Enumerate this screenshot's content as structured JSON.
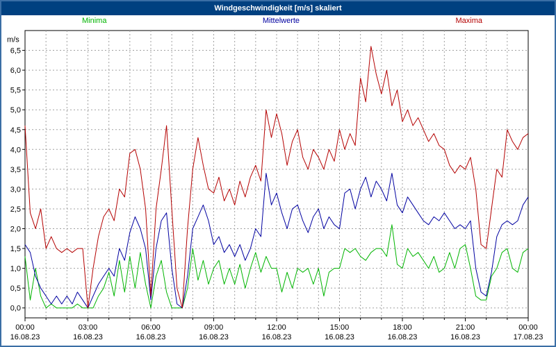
{
  "window": {
    "title": "Windgeschwindigkeit [m/s] skaliert"
  },
  "colors": {
    "titlebar_bg": "#004080",
    "frame_border": "#3a6ea5",
    "grid": "#a0a0a0",
    "axis": "#000000",
    "minima": "#00b400",
    "mittelwerte": "#0000a0",
    "maxima": "#b40000"
  },
  "legend": [
    {
      "label": "Minima",
      "color": "#00b400"
    },
    {
      "label": "Mittelwerte",
      "color": "#0000a0"
    },
    {
      "label": "Maxima",
      "color": "#b40000"
    }
  ],
  "chart_data": {
    "type": "line",
    "title": "Windgeschwindigkeit [m/s] skaliert",
    "ylabel": "m/s",
    "ylim": [
      -0.25,
      7.0
    ],
    "ytick_step": 0.5,
    "yticks": [
      0,
      0.5,
      1,
      1.5,
      2,
      2.5,
      3,
      3.5,
      4,
      4.5,
      5,
      5.5,
      6,
      6.5
    ],
    "ytick_labels": [
      "0,0",
      "0,5",
      "1,0",
      "1,5",
      "2,0",
      "2,5",
      "3,0",
      "3,5",
      "4,0",
      "4,5",
      "5,0",
      "5,5",
      "6,0",
      "6,5"
    ],
    "x_range_hours": [
      0,
      24
    ],
    "x_step_hours": 0.25,
    "grid": true,
    "legend_position": "top",
    "x_ticks": [
      {
        "hour": 0,
        "time": "00:00",
        "date": "16.08.23"
      },
      {
        "hour": 3,
        "time": "03:00",
        "date": "16.08.23"
      },
      {
        "hour": 6,
        "time": "06:00",
        "date": "16.08.23"
      },
      {
        "hour": 9,
        "time": "09:00",
        "date": "16.08.23"
      },
      {
        "hour": 12,
        "time": "12:00",
        "date": "16.08.23"
      },
      {
        "hour": 15,
        "time": "15:00",
        "date": "16.08.23"
      },
      {
        "hour": 18,
        "time": "18:00",
        "date": "16.08.23"
      },
      {
        "hour": 21,
        "time": "21:00",
        "date": "16.08.23"
      },
      {
        "hour": 24,
        "time": "00:00",
        "date": "17.08.23"
      }
    ],
    "series": [
      {
        "name": "Minima",
        "color": "#00b400",
        "values": [
          1.3,
          0.2,
          1.0,
          0.3,
          0.0,
          0.1,
          0.0,
          0.0,
          0.0,
          0.0,
          0.1,
          0.0,
          0.0,
          0.0,
          0.3,
          0.5,
          0.9,
          0.3,
          1.2,
          0.4,
          1.3,
          0.5,
          1.4,
          0.6,
          0.0,
          0.8,
          1.2,
          0.4,
          0.0,
          0.0,
          0.0,
          0.5,
          1.5,
          0.7,
          1.2,
          0.6,
          1.0,
          1.2,
          0.6,
          1.0,
          0.6,
          1.1,
          0.5,
          1.0,
          1.4,
          0.9,
          1.3,
          1.0,
          1.0,
          0.4,
          0.9,
          0.5,
          1.0,
          0.9,
          1.0,
          0.6,
          1.0,
          0.3,
          0.9,
          1.0,
          1.0,
          1.5,
          1.4,
          1.5,
          1.3,
          1.2,
          1.4,
          1.5,
          1.5,
          1.3,
          2.1,
          1.1,
          1.0,
          1.5,
          1.3,
          1.4,
          1.2,
          1.0,
          1.3,
          0.9,
          1.0,
          1.4,
          1.0,
          1.5,
          1.6,
          1.0,
          0.3,
          0.2,
          0.2,
          0.8,
          1.0,
          1.4,
          1.5,
          1.0,
          0.9,
          1.4,
          1.5
        ]
      },
      {
        "name": "Mittelwerte",
        "color": "#0000a0",
        "values": [
          1.6,
          1.4,
          0.8,
          0.5,
          0.3,
          0.1,
          0.3,
          0.1,
          0.3,
          0.1,
          0.4,
          0.2,
          0.0,
          0.3,
          0.6,
          0.8,
          1.0,
          0.8,
          1.5,
          1.2,
          1.9,
          2.3,
          2.0,
          1.5,
          0.2,
          1.5,
          2.2,
          2.4,
          1.0,
          0.1,
          0.0,
          0.8,
          2.0,
          2.3,
          2.6,
          2.2,
          1.6,
          1.8,
          1.4,
          1.6,
          1.3,
          1.6,
          1.2,
          1.5,
          2.0,
          1.8,
          3.4,
          2.6,
          2.9,
          2.4,
          2.0,
          2.5,
          2.6,
          2.2,
          1.9,
          2.3,
          2.5,
          2.0,
          2.3,
          2.1,
          2.0,
          2.9,
          3.0,
          2.5,
          3.0,
          3.3,
          2.8,
          3.2,
          3.0,
          2.7,
          3.4,
          2.6,
          2.4,
          2.8,
          2.6,
          2.4,
          2.2,
          2.1,
          2.3,
          2.2,
          2.4,
          2.2,
          2.0,
          2.1,
          2.0,
          2.2,
          1.0,
          0.4,
          0.3,
          0.9,
          1.8,
          2.1,
          2.2,
          2.1,
          2.2,
          2.6,
          2.8
        ]
      },
      {
        "name": "Maxima",
        "color": "#b40000",
        "values": [
          4.6,
          2.4,
          2.0,
          2.5,
          1.5,
          1.8,
          1.5,
          1.4,
          1.5,
          1.4,
          1.5,
          1.5,
          0.0,
          1.0,
          1.8,
          2.3,
          2.5,
          2.2,
          3.0,
          2.8,
          3.9,
          4.0,
          3.5,
          2.5,
          0.3,
          2.5,
          3.5,
          4.6,
          2.5,
          0.5,
          0.0,
          2.0,
          3.5,
          4.3,
          3.6,
          3.0,
          2.9,
          3.3,
          2.7,
          3.0,
          2.6,
          3.2,
          2.8,
          3.3,
          3.6,
          3.2,
          5.0,
          4.3,
          4.9,
          4.4,
          3.6,
          4.2,
          4.5,
          3.8,
          3.5,
          4.0,
          3.8,
          3.5,
          4.0,
          3.7,
          4.5,
          4.0,
          4.4,
          4.1,
          5.8,
          5.2,
          6.6,
          5.9,
          5.4,
          6.0,
          5.1,
          5.5,
          4.7,
          5.0,
          4.6,
          4.8,
          4.5,
          4.2,
          4.4,
          4.1,
          4.0,
          3.6,
          3.4,
          3.6,
          3.5,
          3.8,
          3.0,
          1.6,
          1.5,
          2.5,
          3.5,
          3.3,
          4.5,
          4.2,
          4.0,
          4.3,
          4.4
        ]
      }
    ]
  }
}
